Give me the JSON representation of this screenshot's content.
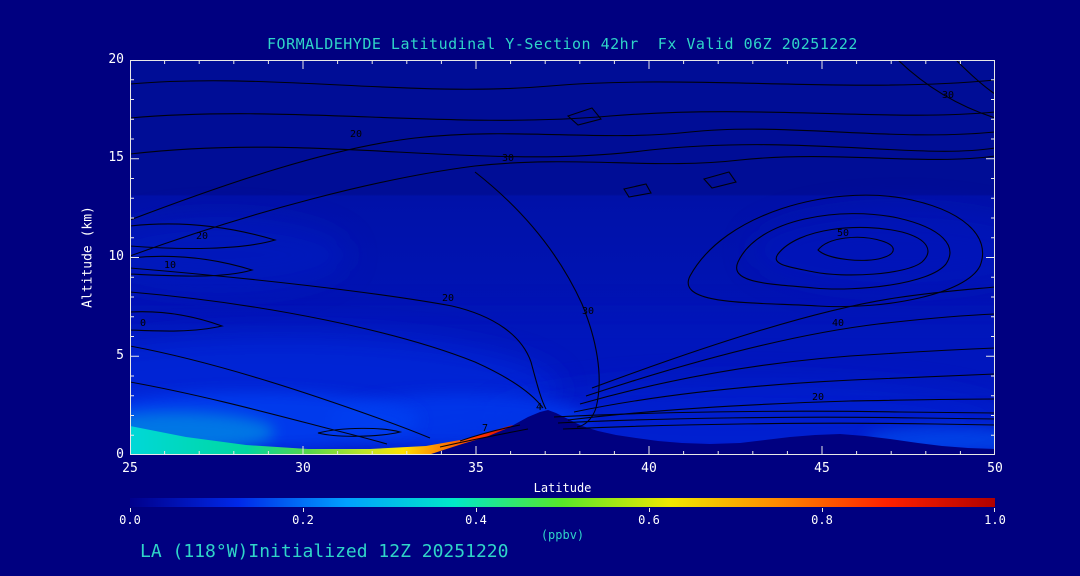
{
  "title": "FORMALDEHYDE Latitudinal Y-Section 42hr  Fx Valid 06Z 20251222",
  "footer": "LA (118°W)Initialized 12Z 20251220",
  "axes": {
    "x_label": "Latitude",
    "y_label": "Altitude (km)",
    "x_ticks": [
      "25",
      "30",
      "35",
      "40",
      "45",
      "50"
    ],
    "y_ticks": [
      "20",
      "15",
      "10",
      "5",
      "0"
    ]
  },
  "colorbar": {
    "label": "(ppbv)",
    "ticks": [
      "0.0",
      "0.2",
      "0.4",
      "0.6",
      "0.8",
      "1.0"
    ],
    "gradient": [
      "#00008B",
      "#0028E8",
      "#00A0FF",
      "#00E8C8",
      "#58E828",
      "#F0E800",
      "#FF8800",
      "#FF2000",
      "#B00000"
    ]
  },
  "contour_labels": [
    "20",
    "30",
    "30",
    "20",
    "10",
    "0",
    "20",
    "30",
    "50",
    "40",
    "20",
    "7",
    "4"
  ],
  "colors": {
    "background": "#000080",
    "title_text": "#2FD5C8",
    "tick_text": "#FFFFFF",
    "contour_line": "#000000"
  },
  "chart_data": {
    "type": "heatmap",
    "title": "FORMALDEHYDE Latitudinal Y-Section 42hr  Fx Valid 06Z 20251222",
    "xlabel": "Latitude",
    "ylabel": "Altitude (km)",
    "xlim": [
      25,
      50
    ],
    "ylim": [
      0,
      20
    ],
    "x_ticks": [
      25,
      30,
      35,
      40,
      45,
      50
    ],
    "y_ticks": [
      0,
      5,
      10,
      15,
      20
    ],
    "colorbar": {
      "label": "(ppbv)",
      "min": 0.0,
      "max": 1.0,
      "ticks": [
        0.0,
        0.2,
        0.4,
        0.6,
        0.8,
        1.0
      ],
      "palette": "rainbow: dark blue -> blue -> cyan -> green -> yellow -> orange -> red"
    },
    "filled_field_ppbv": {
      "latitudes": [
        25,
        28,
        30,
        32,
        34,
        36,
        38,
        40,
        42,
        44,
        46,
        48,
        50
      ],
      "altitudes_km": [
        0,
        1,
        2,
        3,
        5,
        8,
        10,
        13,
        16,
        20
      ],
      "values": [
        [
          0.45,
          0.5,
          0.55,
          0.7,
          0.95,
          null,
          null,
          0.15,
          0.12,
          0.1,
          0.12,
          0.2,
          0.15
        ],
        [
          0.3,
          0.25,
          0.22,
          0.2,
          0.18,
          null,
          0.12,
          0.12,
          0.1,
          0.08,
          0.1,
          0.12,
          0.1
        ],
        [
          0.2,
          0.18,
          0.16,
          0.14,
          0.13,
          0.12,
          0.1,
          0.1,
          0.08,
          0.08,
          0.08,
          0.08,
          0.08
        ],
        [
          0.16,
          0.15,
          0.13,
          0.12,
          0.11,
          0.1,
          0.09,
          0.08,
          0.07,
          0.07,
          0.07,
          0.07,
          0.06
        ],
        [
          0.12,
          0.11,
          0.1,
          0.09,
          0.08,
          0.08,
          0.07,
          0.07,
          0.06,
          0.06,
          0.06,
          0.05,
          0.05
        ],
        [
          0.08,
          0.08,
          0.07,
          0.07,
          0.06,
          0.06,
          0.06,
          0.05,
          0.05,
          0.05,
          0.05,
          0.05,
          0.04
        ],
        [
          0.07,
          0.06,
          0.06,
          0.06,
          0.05,
          0.05,
          0.05,
          0.05,
          0.04,
          0.04,
          0.04,
          0.04,
          0.04
        ],
        [
          0.05,
          0.05,
          0.05,
          0.04,
          0.04,
          0.04,
          0.04,
          0.04,
          0.03,
          0.03,
          0.03,
          0.03,
          0.03
        ],
        [
          0.03,
          0.03,
          0.03,
          0.03,
          0.03,
          0.03,
          0.02,
          0.02,
          0.02,
          0.02,
          0.02,
          0.02,
          0.02
        ],
        [
          0.02,
          0.02,
          0.02,
          0.02,
          0.02,
          0.02,
          0.02,
          0.02,
          0.02,
          0.02,
          0.02,
          0.02,
          0.02
        ]
      ],
      "note": "values estimated from fill colors; null = below terrain; surface maximum ~1.0 ppbv (red) near latitude 33-34 at ground level, cyan ~0.4-0.5 near surface at latitude 25-31"
    },
    "line_contour_overlay": {
      "labeled_levels_seen": [
        0,
        4,
        7,
        10,
        20,
        30,
        40,
        50
      ],
      "closed_maximum": {
        "latitude": 45,
        "altitude_km": 10,
        "innermost_label": 50
      }
    },
    "terrain_profile": [
      {
        "lat": 25,
        "km": 0
      },
      {
        "lat": 33,
        "km": 0
      },
      {
        "lat": 35,
        "km": 0.6
      },
      {
        "lat": 36.5,
        "km": 2.0
      },
      {
        "lat": 37,
        "km": 2.3
      },
      {
        "lat": 38,
        "km": 1.6
      },
      {
        "lat": 40,
        "km": 0.9
      },
      {
        "lat": 42,
        "km": 0.6
      },
      {
        "lat": 44,
        "km": 1.0
      },
      {
        "lat": 46,
        "km": 1.0
      },
      {
        "lat": 48,
        "km": 0.5
      },
      {
        "lat": 50,
        "km": 0.3
      }
    ]
  }
}
